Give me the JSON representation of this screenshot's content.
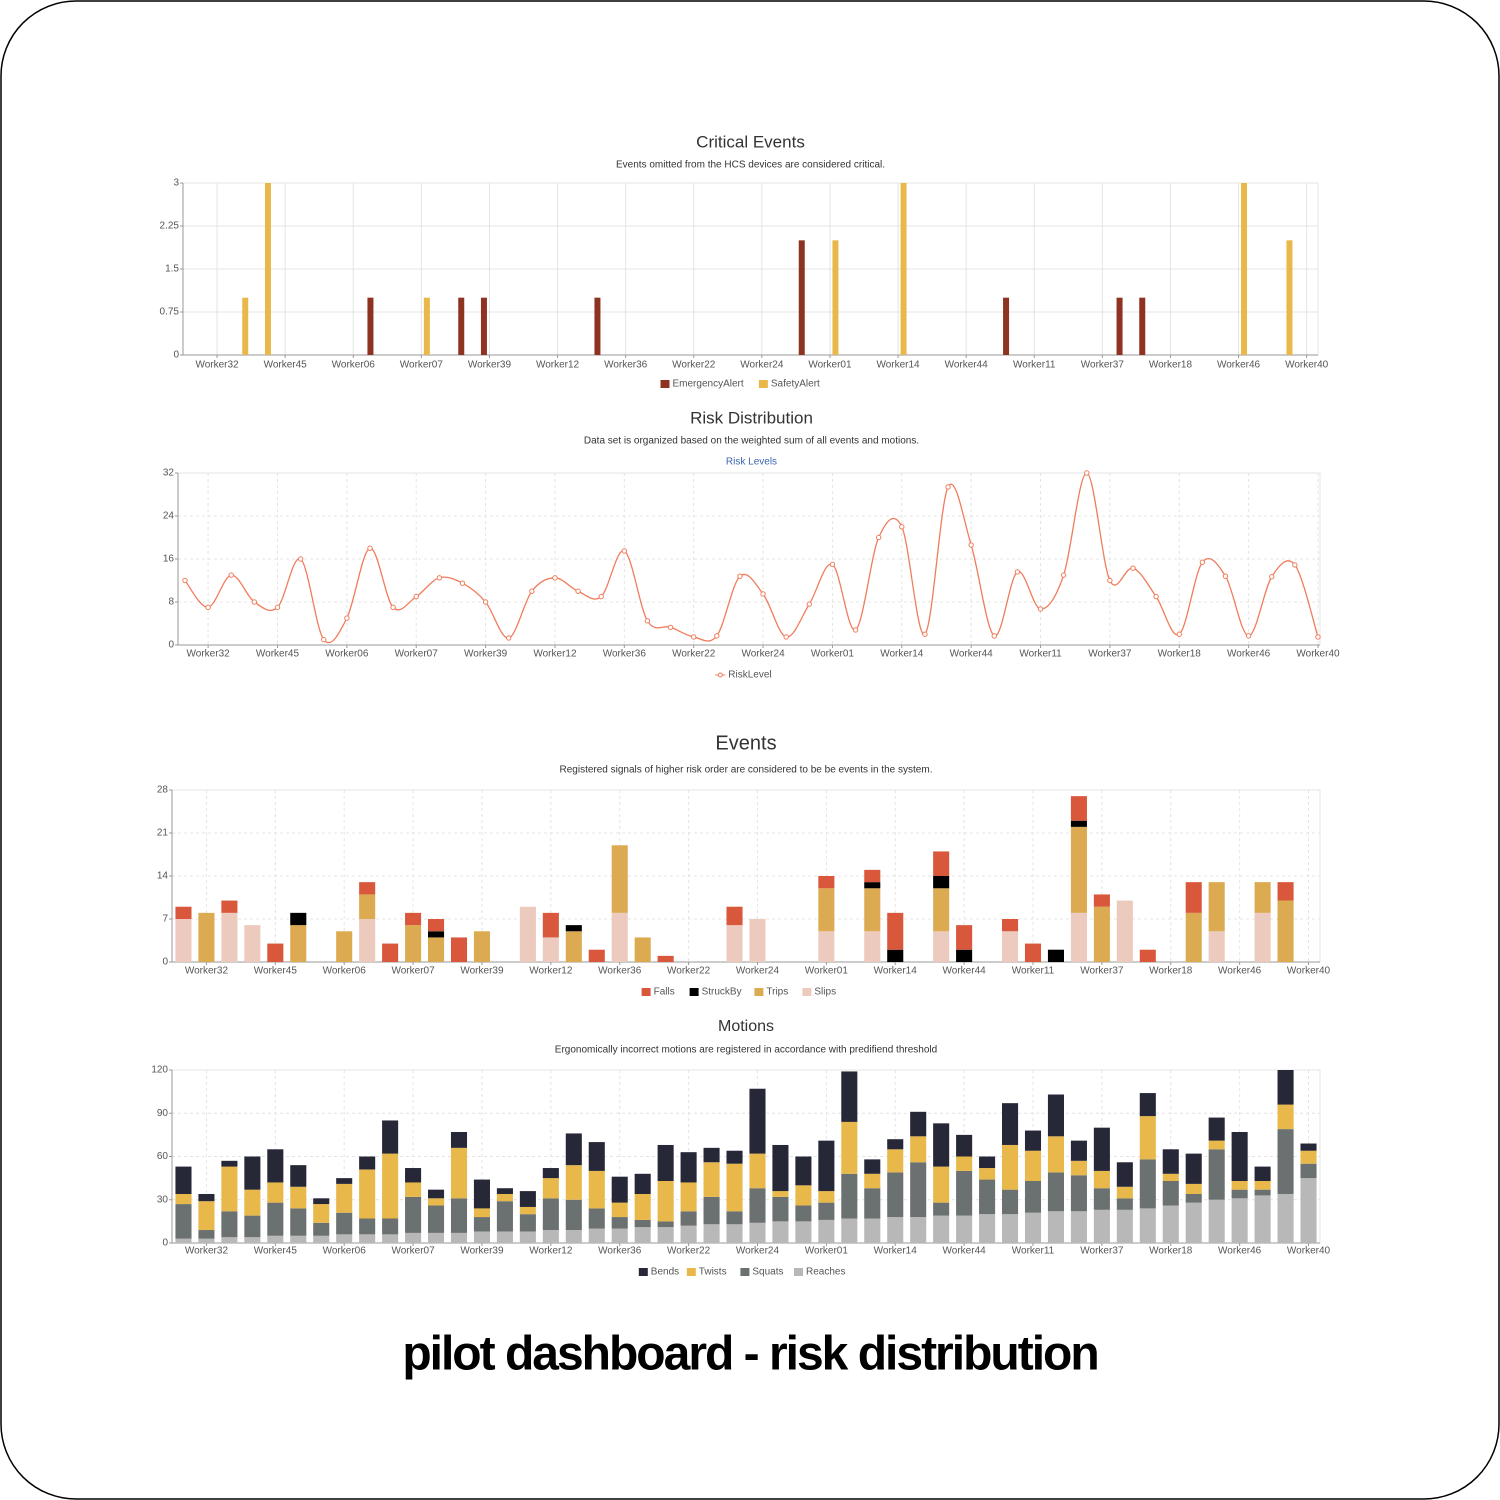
{
  "page_title": "pilot dashboard - risk distribution",
  "chart_data": [
    {
      "type": "bar",
      "title": "Critical Events",
      "subtitle": "Events omitted from the HCS devices are considered critical.",
      "categories": [
        null,
        "Worker32",
        null,
        null,
        "Worker45",
        null,
        null,
        "Worker06",
        null,
        null,
        "Worker07",
        null,
        null,
        "Worker39",
        null,
        null,
        "Worker12",
        null,
        null,
        "Worker36",
        null,
        null,
        "Worker22",
        null,
        null,
        "Worker24",
        null,
        null,
        "Worker01",
        null,
        null,
        "Worker14",
        null,
        null,
        "Worker44",
        null,
        null,
        "Worker11",
        null,
        null,
        "Worker37",
        null,
        null,
        "Worker18",
        null,
        null,
        "Worker46",
        null,
        null,
        "Worker40"
      ],
      "series": [
        {
          "name": "EmergencyAlert",
          "color": "#8e3322",
          "values": [
            0,
            0,
            0,
            0,
            0,
            0,
            0,
            0,
            1,
            0,
            0,
            0,
            1,
            1,
            0,
            0,
            0,
            0,
            1,
            0,
            0,
            0,
            0,
            0,
            0,
            0,
            0,
            2,
            0,
            0,
            0,
            0,
            0,
            0,
            0,
            0,
            1,
            0,
            0,
            0,
            0,
            1,
            1,
            0,
            0,
            0,
            0,
            0,
            0,
            0
          ]
        },
        {
          "name": "SafetyAlert",
          "color": "#e8b84a",
          "values": [
            0,
            0,
            1,
            3,
            0,
            0,
            0,
            0,
            0,
            0,
            1,
            0,
            0,
            0,
            0,
            0,
            0,
            0,
            0,
            0,
            0,
            0,
            0,
            0,
            0,
            0,
            0,
            0,
            2,
            0,
            0,
            3,
            0,
            0,
            0,
            0,
            0,
            0,
            0,
            0,
            0,
            0,
            0,
            0,
            0,
            0,
            3,
            0,
            2,
            0
          ]
        }
      ],
      "ylim": [
        0,
        3
      ],
      "yticks": [
        0,
        0.75,
        1.5,
        2.25,
        3
      ],
      "grid": true
    },
    {
      "type": "line",
      "title": "Risk Distribution",
      "subtitle": "Data set is organized based on the weighted sum of all events and motions.",
      "header_label": "Risk Levels",
      "categories": [
        null,
        "Worker32",
        null,
        null,
        "Worker45",
        null,
        null,
        "Worker06",
        null,
        null,
        "Worker07",
        null,
        null,
        "Worker39",
        null,
        null,
        "Worker12",
        null,
        null,
        "Worker36",
        null,
        null,
        "Worker22",
        null,
        null,
        "Worker24",
        null,
        null,
        "Worker01",
        null,
        null,
        "Worker14",
        null,
        null,
        "Worker44",
        null,
        null,
        "Worker11",
        null,
        null,
        "Worker37",
        null,
        null,
        "Worker18",
        null,
        null,
        "Worker46",
        null,
        null,
        "Worker40"
      ],
      "series": [
        {
          "name": "RiskLevel",
          "color": "#f07c5c",
          "values": [
            12,
            7,
            13,
            8,
            7,
            16,
            1,
            5,
            18,
            7,
            9,
            12.5,
            11.5,
            8,
            1.3,
            10,
            12.5,
            10,
            9,
            17.5,
            4.5,
            3.3,
            1.5,
            1.7,
            12.8,
            9.5,
            1.5,
            7.6,
            15,
            2.8,
            20,
            22,
            2,
            29.4,
            18.6,
            1.7,
            13.6,
            6.7,
            13,
            32,
            12,
            14.3,
            9,
            2,
            15.4,
            12.8,
            1.7,
            12.7,
            14.9,
            1.5
          ]
        }
      ],
      "ylim": [
        0,
        32
      ],
      "yticks": [
        0,
        8,
        16,
        24,
        32
      ],
      "grid": true
    },
    {
      "type": "stacked_bar",
      "title": "Events",
      "subtitle": "Registered signals of higher risk order are considered to be be events in the system.",
      "categories": [
        null,
        "Worker32",
        null,
        null,
        "Worker45",
        null,
        null,
        "Worker06",
        null,
        null,
        "Worker07",
        null,
        null,
        "Worker39",
        null,
        null,
        "Worker12",
        null,
        null,
        "Worker36",
        null,
        null,
        "Worker22",
        null,
        null,
        "Worker24",
        null,
        null,
        "Worker01",
        null,
        null,
        "Worker14",
        null,
        null,
        "Worker44",
        null,
        null,
        "Worker11",
        null,
        null,
        "Worker37",
        null,
        null,
        "Worker18",
        null,
        null,
        "Worker46",
        null,
        null,
        "Worker40"
      ],
      "series": [
        {
          "name": "Falls",
          "color": "#d9583c",
          "values": [
            2,
            0,
            2,
            0,
            3,
            0,
            0,
            0,
            2,
            3,
            2,
            2,
            4,
            0,
            0,
            0,
            4,
            0,
            2,
            0,
            0,
            1,
            0,
            0,
            3,
            0,
            0,
            0,
            2,
            0,
            2,
            6,
            0,
            4,
            4,
            0,
            2,
            3,
            0,
            4,
            2,
            0,
            2,
            0,
            5,
            0,
            0,
            0,
            3,
            0
          ]
        },
        {
          "name": "StruckBy",
          "color": "#000000",
          "values": [
            0,
            0,
            0,
            0,
            0,
            2,
            0,
            0,
            0,
            0,
            0,
            1,
            0,
            0,
            0,
            0,
            0,
            1,
            0,
            0,
            0,
            0,
            0,
            0,
            0,
            0,
            0,
            0,
            0,
            0,
            1,
            2,
            0,
            2,
            2,
            0,
            0,
            0,
            2,
            1,
            0,
            0,
            0,
            0,
            0,
            0,
            0,
            0,
            0,
            0
          ]
        },
        {
          "name": "Trips",
          "color": "#dcaa50",
          "values": [
            0,
            8,
            0,
            0,
            0,
            6,
            0,
            5,
            4,
            0,
            6,
            4,
            0,
            5,
            0,
            0,
            0,
            5,
            0,
            11,
            4,
            0,
            0,
            0,
            0,
            0,
            0,
            0,
            7,
            0,
            7,
            0,
            0,
            7,
            0,
            0,
            0,
            0,
            0,
            14,
            9,
            0,
            0,
            0,
            8,
            8,
            0,
            5,
            10,
            0
          ]
        },
        {
          "name": "Slips",
          "color": "#eccabd",
          "values": [
            7,
            0,
            8,
            6,
            0,
            0,
            0,
            0,
            7,
            0,
            0,
            0,
            0,
            0,
            0,
            9,
            4,
            0,
            0,
            8,
            0,
            0,
            0,
            0,
            6,
            7,
            0,
            0,
            5,
            0,
            5,
            0,
            0,
            5,
            0,
            0,
            5,
            0,
            0,
            8,
            0,
            10,
            0,
            0,
            0,
            5,
            0,
            8,
            0,
            0
          ]
        }
      ],
      "ylim": [
        0,
        28
      ],
      "yticks": [
        0,
        7,
        14,
        21,
        28
      ],
      "grid": true
    },
    {
      "type": "stacked_bar",
      "title": "Motions",
      "subtitle": "Ergonomically incorrect motions are registered in accordance with predifiend threshold",
      "categories": [
        null,
        "Worker32",
        null,
        null,
        "Worker45",
        null,
        null,
        "Worker06",
        null,
        null,
        "Worker07",
        null,
        null,
        "Worker39",
        null,
        null,
        "Worker12",
        null,
        null,
        "Worker36",
        null,
        null,
        "Worker22",
        null,
        null,
        "Worker24",
        null,
        null,
        "Worker01",
        null,
        null,
        "Worker14",
        null,
        null,
        "Worker44",
        null,
        null,
        "Worker11",
        null,
        null,
        "Worker37",
        null,
        null,
        "Worker18",
        null,
        null,
        "Worker46",
        null,
        null,
        "Worker40"
      ],
      "series": [
        {
          "name": "Bends",
          "color": "#262838",
          "values": [
            19,
            5,
            4,
            23,
            23,
            15,
            4,
            4,
            9,
            23,
            10,
            6,
            11,
            20,
            4,
            11,
            7,
            22,
            20,
            18,
            14,
            25,
            21,
            10,
            9,
            45,
            32,
            20,
            35,
            35,
            10,
            7,
            17,
            30,
            15,
            8,
            29,
            14,
            29,
            14,
            30,
            17,
            16,
            17,
            21,
            16,
            34,
            10,
            24,
            5
          ]
        },
        {
          "name": "Twists",
          "color": "#e8b84a",
          "values": [
            7,
            20,
            31,
            18,
            14,
            15,
            13,
            20,
            34,
            45,
            10,
            5,
            35,
            6,
            5,
            5,
            14,
            24,
            26,
            10,
            18,
            28,
            20,
            24,
            33,
            24,
            4,
            14,
            8,
            36,
            10,
            16,
            18,
            25,
            10,
            8,
            31,
            21,
            25,
            10,
            12,
            8,
            30,
            5,
            7,
            6,
            6,
            6,
            17,
            9
          ]
        },
        {
          "name": "Squats",
          "color": "#6b7070",
          "values": [
            24,
            6,
            18,
            15,
            23,
            19,
            9,
            15,
            11,
            11,
            25,
            19,
            24,
            10,
            21,
            12,
            22,
            21,
            14,
            8,
            5,
            4,
            10,
            19,
            9,
            24,
            17,
            11,
            12,
            31,
            21,
            31,
            38,
            9,
            31,
            24,
            17,
            22,
            27,
            25,
            15,
            8,
            34,
            17,
            6,
            35,
            6,
            4,
            45,
            10
          ]
        },
        {
          "name": "Reaches",
          "color": "#b8b8b8",
          "values": [
            3,
            3,
            4,
            4,
            5,
            5,
            5,
            6,
            6,
            6,
            7,
            7,
            7,
            8,
            8,
            8,
            9,
            9,
            10,
            10,
            11,
            11,
            12,
            13,
            13,
            14,
            15,
            15,
            16,
            17,
            17,
            18,
            18,
            19,
            19,
            20,
            20,
            21,
            22,
            22,
            23,
            23,
            24,
            26,
            28,
            30,
            31,
            33,
            34,
            45
          ]
        }
      ],
      "ylim": [
        0,
        120
      ],
      "yticks": [
        0,
        30,
        60,
        90,
        120
      ],
      "grid": true
    }
  ]
}
